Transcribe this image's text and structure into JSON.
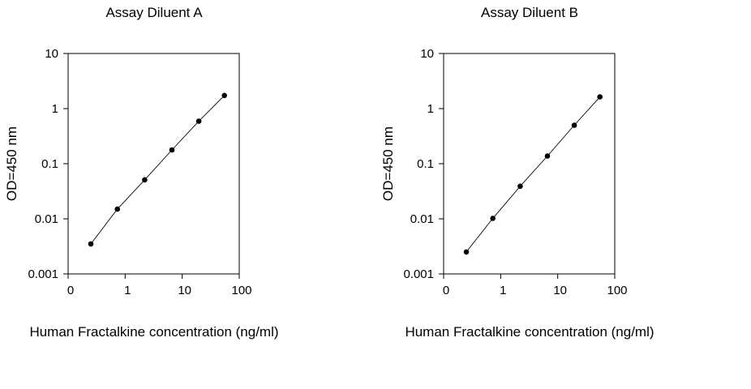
{
  "chart_data": [
    {
      "type": "scatter",
      "title": "Assay Diluent A",
      "xlabel": "Human Fractalkine concentration (ng/ml)",
      "ylabel": "OD=450 nm",
      "xscale": "log",
      "yscale": "log",
      "x_tick_labels": [
        "0",
        "1",
        "10",
        "100"
      ],
      "y_tick_labels": [
        "10",
        "1",
        "0.1",
        "0.01",
        "0.001"
      ],
      "xlim": [
        0.1,
        100
      ],
      "ylim": [
        0.001,
        10
      ],
      "grid": false,
      "trendline": true,
      "series": [
        {
          "x": [
            0.25,
            0.73,
            2.2,
            6.6,
            19.5,
            55
          ],
          "y": [
            0.0035,
            0.015,
            0.051,
            0.178,
            0.59,
            1.73
          ]
        }
      ]
    },
    {
      "type": "scatter",
      "title": "Assay Diluent B",
      "xlabel": "Human Fractalkine concentration (ng/ml)",
      "ylabel": "OD=450 nm",
      "xscale": "log",
      "yscale": "log",
      "x_tick_labels": [
        "0",
        "1",
        "10",
        "100"
      ],
      "y_tick_labels": [
        "10",
        "1",
        "0.1",
        "0.01",
        "0.001"
      ],
      "xlim": [
        0.1,
        100
      ],
      "ylim": [
        0.001,
        10
      ],
      "grid": false,
      "trendline": true,
      "series": [
        {
          "x": [
            0.25,
            0.73,
            2.2,
            6.6,
            19.5,
            55
          ],
          "y": [
            0.0025,
            0.0102,
            0.039,
            0.138,
            0.5,
            1.63
          ]
        }
      ]
    }
  ]
}
